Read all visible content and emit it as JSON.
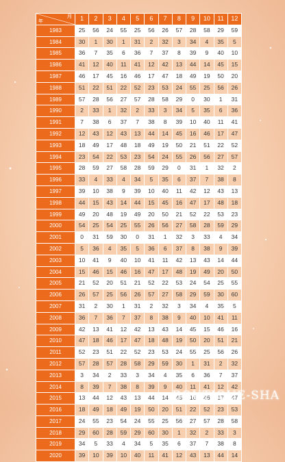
{
  "table": {
    "corner_month": "月",
    "corner_year": "年",
    "months": [
      "1",
      "2",
      "3",
      "4",
      "5",
      "6",
      "7",
      "8",
      "9",
      "10",
      "11",
      "12"
    ],
    "rows": [
      {
        "year": "1983",
        "values": [
          "25",
          "56",
          "24",
          "55",
          "25",
          "56",
          "26",
          "57",
          "28",
          "58",
          "29",
          "59"
        ]
      },
      {
        "year": "1984",
        "values": [
          "30",
          "1",
          "30",
          "1",
          "31",
          "2",
          "32",
          "3",
          "34",
          "4",
          "35",
          "5"
        ]
      },
      {
        "year": "1985",
        "values": [
          "36",
          "7",
          "35",
          "6",
          "36",
          "7",
          "37",
          "8",
          "39",
          "9",
          "40",
          "10"
        ]
      },
      {
        "year": "1986",
        "values": [
          "41",
          "12",
          "40",
          "11",
          "41",
          "12",
          "42",
          "13",
          "44",
          "14",
          "45",
          "15"
        ]
      },
      {
        "year": "1987",
        "values": [
          "46",
          "17",
          "45",
          "16",
          "46",
          "17",
          "47",
          "18",
          "49",
          "19",
          "50",
          "20"
        ]
      },
      {
        "year": "1988",
        "values": [
          "51",
          "22",
          "51",
          "22",
          "52",
          "23",
          "53",
          "24",
          "55",
          "25",
          "56",
          "26"
        ]
      },
      {
        "year": "1989",
        "values": [
          "57",
          "28",
          "56",
          "27",
          "57",
          "28",
          "58",
          "29",
          "0",
          "30",
          "1",
          "31"
        ]
      },
      {
        "year": "1990",
        "values": [
          "2",
          "33",
          "1",
          "32",
          "2",
          "33",
          "3",
          "34",
          "5",
          "35",
          "6",
          "36"
        ]
      },
      {
        "year": "1991",
        "values": [
          "7",
          "38",
          "6",
          "37",
          "7",
          "38",
          "8",
          "39",
          "10",
          "40",
          "11",
          "41"
        ]
      },
      {
        "year": "1992",
        "values": [
          "12",
          "43",
          "12",
          "43",
          "13",
          "44",
          "14",
          "45",
          "16",
          "46",
          "17",
          "47"
        ]
      },
      {
        "year": "1993",
        "values": [
          "18",
          "49",
          "17",
          "48",
          "18",
          "49",
          "19",
          "50",
          "21",
          "51",
          "22",
          "52"
        ]
      },
      {
        "year": "1994",
        "values": [
          "23",
          "54",
          "22",
          "53",
          "23",
          "54",
          "24",
          "55",
          "26",
          "56",
          "27",
          "57"
        ]
      },
      {
        "year": "1995",
        "values": [
          "28",
          "59",
          "27",
          "58",
          "28",
          "59",
          "29",
          "0",
          "31",
          "1",
          "32",
          "2"
        ]
      },
      {
        "year": "1996",
        "values": [
          "33",
          "4",
          "33",
          "4",
          "34",
          "5",
          "35",
          "6",
          "37",
          "7",
          "38",
          "8"
        ]
      },
      {
        "year": "1997",
        "values": [
          "39",
          "10",
          "38",
          "9",
          "39",
          "10",
          "40",
          "11",
          "42",
          "12",
          "43",
          "13"
        ]
      },
      {
        "year": "1998",
        "values": [
          "44",
          "15",
          "43",
          "14",
          "44",
          "15",
          "45",
          "16",
          "47",
          "17",
          "48",
          "18"
        ]
      },
      {
        "year": "1999",
        "values": [
          "49",
          "20",
          "48",
          "19",
          "49",
          "20",
          "50",
          "21",
          "52",
          "22",
          "53",
          "23"
        ]
      },
      {
        "year": "2000",
        "values": [
          "54",
          "25",
          "54",
          "25",
          "55",
          "26",
          "56",
          "27",
          "58",
          "28",
          "59",
          "29"
        ]
      },
      {
        "year": "2001",
        "values": [
          "0",
          "31",
          "59",
          "30",
          "0",
          "31",
          "1",
          "32",
          "3",
          "33",
          "4",
          "34"
        ]
      },
      {
        "year": "2002",
        "values": [
          "5",
          "36",
          "4",
          "35",
          "5",
          "36",
          "6",
          "37",
          "8",
          "38",
          "9",
          "39"
        ]
      },
      {
        "year": "2003",
        "values": [
          "10",
          "41",
          "9",
          "40",
          "10",
          "41",
          "11",
          "42",
          "13",
          "43",
          "14",
          "44"
        ]
      },
      {
        "year": "2004",
        "values": [
          "15",
          "46",
          "15",
          "46",
          "16",
          "47",
          "17",
          "48",
          "19",
          "49",
          "20",
          "50"
        ]
      },
      {
        "year": "2005",
        "values": [
          "21",
          "52",
          "20",
          "51",
          "21",
          "52",
          "22",
          "53",
          "24",
          "54",
          "25",
          "55"
        ]
      },
      {
        "year": "2006",
        "values": [
          "26",
          "57",
          "25",
          "56",
          "26",
          "57",
          "27",
          "58",
          "29",
          "59",
          "30",
          "60"
        ]
      },
      {
        "year": "2007",
        "values": [
          "31",
          "2",
          "30",
          "1",
          "31",
          "2",
          "32",
          "3",
          "34",
          "4",
          "35",
          "5"
        ]
      },
      {
        "year": "2008",
        "values": [
          "36",
          "7",
          "36",
          "7",
          "37",
          "8",
          "38",
          "9",
          "40",
          "10",
          "41",
          "11"
        ]
      },
      {
        "year": "2009",
        "values": [
          "42",
          "13",
          "41",
          "12",
          "42",
          "13",
          "43",
          "14",
          "45",
          "15",
          "46",
          "16"
        ]
      },
      {
        "year": "2010",
        "values": [
          "47",
          "18",
          "46",
          "17",
          "47",
          "18",
          "48",
          "19",
          "50",
          "20",
          "51",
          "21"
        ]
      },
      {
        "year": "2011",
        "values": [
          "52",
          "23",
          "51",
          "22",
          "52",
          "23",
          "53",
          "24",
          "55",
          "25",
          "56",
          "26"
        ]
      },
      {
        "year": "2012",
        "values": [
          "57",
          "28",
          "57",
          "28",
          "58",
          "29",
          "59",
          "30",
          "1",
          "31",
          "2",
          "32"
        ]
      },
      {
        "year": "2013",
        "values": [
          "3",
          "34",
          "2",
          "33",
          "3",
          "34",
          "4",
          "35",
          "6",
          "36",
          "7",
          "37"
        ]
      },
      {
        "year": "2014",
        "values": [
          "8",
          "39",
          "7",
          "38",
          "8",
          "39",
          "9",
          "40",
          "11",
          "41",
          "12",
          "42"
        ]
      },
      {
        "year": "2015",
        "values": [
          "13",
          "44",
          "12",
          "43",
          "13",
          "44",
          "14",
          "45",
          "16",
          "46",
          "17",
          "47"
        ]
      },
      {
        "year": "2016",
        "values": [
          "18",
          "49",
          "18",
          "49",
          "19",
          "50",
          "20",
          "51",
          "22",
          "52",
          "23",
          "53"
        ]
      },
      {
        "year": "2017",
        "values": [
          "24",
          "55",
          "23",
          "54",
          "24",
          "55",
          "25",
          "56",
          "27",
          "57",
          "28",
          "58"
        ]
      },
      {
        "year": "2018",
        "values": [
          "29",
          "60",
          "28",
          "59",
          "29",
          "60",
          "30",
          "1",
          "32",
          "2",
          "33",
          "3"
        ]
      },
      {
        "year": "2019",
        "values": [
          "34",
          "5",
          "33",
          "4",
          "34",
          "5",
          "35",
          "6",
          "37",
          "7",
          "38",
          "8"
        ]
      },
      {
        "year": "2020",
        "values": [
          "39",
          "10",
          "39",
          "10",
          "40",
          "11",
          "41",
          "12",
          "43",
          "13",
          "44",
          "14"
        ]
      }
    ]
  },
  "watermark": "BOUTIQUE-SHA",
  "colors": {
    "header_orange": "#ec6a1c",
    "row_peach": "#f7cfae",
    "row_white": "#ffffff",
    "background": "#f6cfb0"
  }
}
